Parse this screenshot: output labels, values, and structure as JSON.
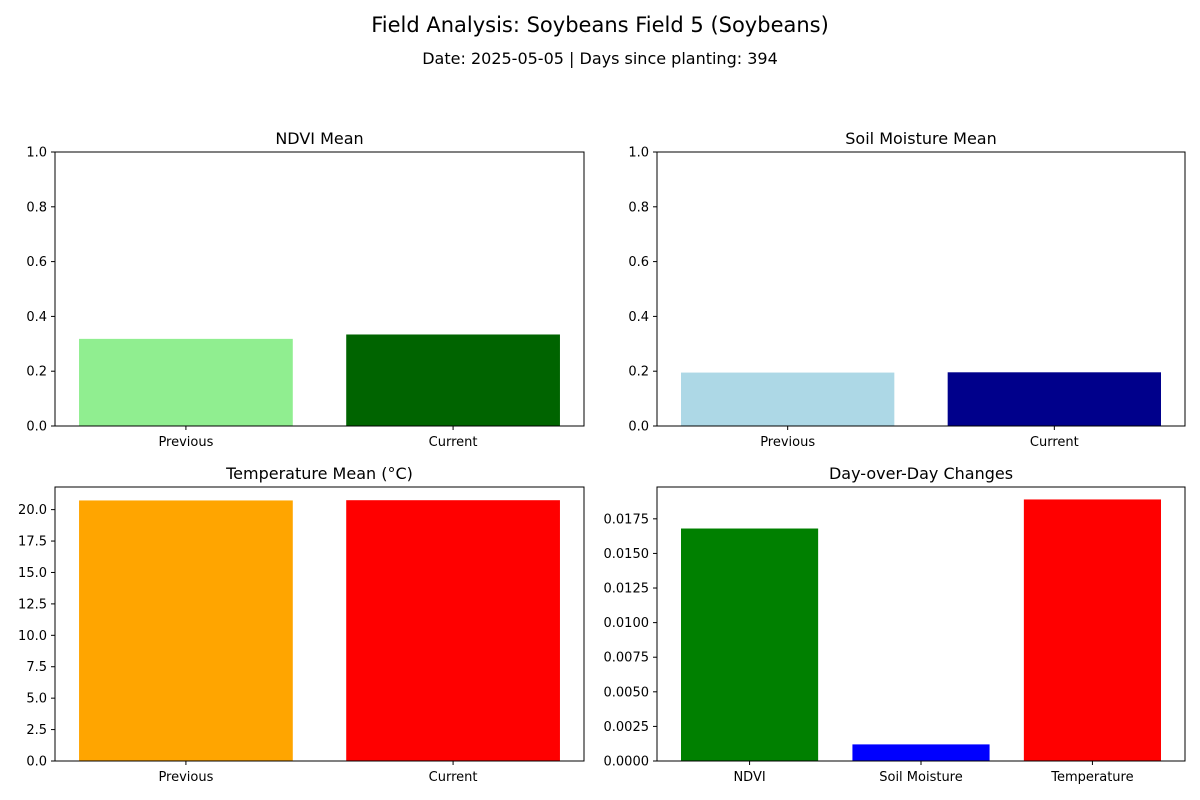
{
  "figure": {
    "title": "Field Analysis: Soybeans Field 5 (Soybeans)",
    "subtitle": "Date: 2025-05-05 | Days since planting: 394"
  },
  "chart_data": [
    {
      "type": "bar",
      "title": "NDVI Mean",
      "categories": [
        "Previous",
        "Current"
      ],
      "values": [
        0.318,
        0.334
      ],
      "colors": [
        "#90ee90",
        "#006400"
      ],
      "ylim": [
        0,
        1
      ],
      "yticks": [
        0,
        0.2,
        0.4,
        0.6,
        0.8,
        1.0
      ],
      "ytick_labels": [
        "0.0",
        "0.2",
        "0.4",
        "0.6",
        "0.8",
        "1.0"
      ],
      "xlabel": "",
      "ylabel": "",
      "grid": false
    },
    {
      "type": "bar",
      "title": "Soil Moisture Mean",
      "categories": [
        "Previous",
        "Current"
      ],
      "values": [
        0.195,
        0.196
      ],
      "colors": [
        "#add8e6",
        "#00008b"
      ],
      "ylim": [
        0,
        1
      ],
      "yticks": [
        0,
        0.2,
        0.4,
        0.6,
        0.8,
        1.0
      ],
      "ytick_labels": [
        "0.0",
        "0.2",
        "0.4",
        "0.6",
        "0.8",
        "1.0"
      ],
      "xlabel": "",
      "ylabel": "",
      "grid": false
    },
    {
      "type": "bar",
      "title": "Temperature Mean (°C)",
      "categories": [
        "Previous",
        "Current"
      ],
      "values": [
        20.73,
        20.75
      ],
      "colors": [
        "#ffa500",
        "#ff0000"
      ],
      "ylim": [
        0,
        21.8
      ],
      "yticks": [
        0,
        2.5,
        5,
        7.5,
        10,
        12.5,
        15,
        17.5,
        20
      ],
      "ytick_labels": [
        "0.0",
        "2.5",
        "5.0",
        "7.5",
        "10.0",
        "12.5",
        "15.0",
        "17.5",
        "20.0"
      ],
      "xlabel": "",
      "ylabel": "",
      "grid": false
    },
    {
      "type": "bar",
      "title": "Day-over-Day Changes",
      "categories": [
        "NDVI",
        "Soil Moisture",
        "Temperature"
      ],
      "values": [
        0.0168,
        0.0012,
        0.0189
      ],
      "colors": [
        "#008000",
        "#0000ff",
        "#ff0000"
      ],
      "ylim": [
        0,
        0.0198
      ],
      "yticks": [
        0,
        0.0025,
        0.005,
        0.0075,
        0.01,
        0.0125,
        0.015,
        0.0175
      ],
      "ytick_labels": [
        "0.0000",
        "0.0025",
        "0.0050",
        "0.0075",
        "0.0100",
        "0.0125",
        "0.0150",
        "0.0175"
      ],
      "xlabel": "",
      "ylabel": "",
      "grid": false
    }
  ]
}
